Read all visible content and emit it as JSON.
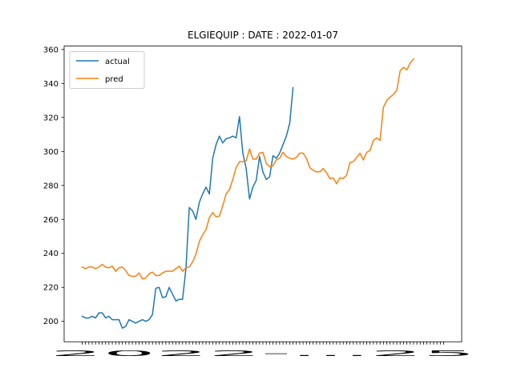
{
  "chart_data": {
    "type": "line",
    "title": "ELGIEQUIP : DATE : 2022-01-07",
    "xlabel": "",
    "ylabel": "",
    "ylim": [
      188,
      362
    ],
    "yticks": [
      200,
      220,
      240,
      260,
      280,
      300,
      320,
      340,
      360
    ],
    "x_tick_labels_overlapping": "2022-...25",
    "legend": {
      "position": "top-left"
    },
    "grid": false,
    "n_points": 109,
    "series": [
      {
        "name": "actual",
        "color": "#1f77b4",
        "values": [
          203,
          202,
          202,
          203,
          202,
          205,
          205,
          202,
          203,
          201,
          201,
          201,
          196,
          197,
          201,
          200,
          199,
          200,
          201,
          200,
          201,
          204,
          219.5,
          220,
          214,
          214.5,
          220,
          216,
          212,
          213,
          213,
          231,
          267,
          265,
          260,
          270,
          275,
          279,
          275,
          296,
          304,
          309,
          305,
          307.5,
          308,
          309,
          308,
          320.5,
          299,
          290,
          272,
          279,
          283,
          297,
          288,
          283.5,
          285,
          297.5,
          296,
          299,
          304,
          309,
          316.5,
          337.5
        ]
      },
      {
        "name": "pred",
        "color": "#ff7f0e",
        "values": [
          232,
          231,
          232,
          232,
          231,
          232,
          233.5,
          232,
          231.5,
          232.5,
          229.5,
          231.5,
          232,
          230,
          227,
          226.5,
          226.5,
          228.5,
          225,
          225.5,
          228,
          229,
          227,
          227,
          228.5,
          229.5,
          229.5,
          229.5,
          231,
          232.5,
          229.5,
          231.5,
          232,
          235,
          239.5,
          247,
          251,
          254,
          261,
          264,
          261.5,
          262,
          268,
          275,
          277.5,
          283.5,
          290.5,
          294,
          294,
          294.5,
          301.5,
          295.5,
          295.5,
          299,
          299.5,
          293,
          291,
          291.5,
          295,
          296,
          299.5,
          297,
          296,
          295.5,
          296.5,
          299,
          299,
          296,
          290.5,
          289,
          288,
          288,
          290,
          287.5,
          284,
          284.5,
          281,
          284.5,
          284,
          286,
          293.5,
          294,
          296.5,
          299,
          295,
          299.5,
          300.5,
          306.5,
          308,
          306.5,
          326,
          330,
          332,
          333.5,
          336,
          347.5,
          349.5,
          348,
          352,
          354.5
        ]
      }
    ]
  }
}
